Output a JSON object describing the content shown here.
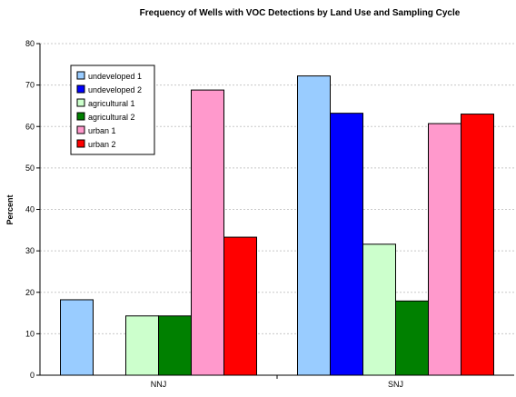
{
  "chart_data": {
    "type": "bar",
    "title": "Frequency of Wells with VOC Detections by Land Use and Sampling Cycle",
    "xlabel": "",
    "ylabel": "Percent",
    "categories": [
      "NNJ",
      "SNJ"
    ],
    "ylim": [
      0,
      80
    ],
    "yticks": [
      0,
      10,
      20,
      30,
      40,
      50,
      60,
      70,
      80
    ],
    "grid": true,
    "legend_position": "top-left",
    "series": [
      {
        "name": "undeveloped 1",
        "color": "#99ccff",
        "values": [
          18.2,
          72.2
        ]
      },
      {
        "name": "undeveloped 2",
        "color": "#0000ff",
        "values": [
          null,
          63.2
        ]
      },
      {
        "name": "agricultural 1",
        "color": "#ccffcc",
        "values": [
          14.3,
          31.6
        ]
      },
      {
        "name": "agricultural 2",
        "color": "#008000",
        "values": [
          14.3,
          17.9
        ]
      },
      {
        "name": "urban 1",
        "color": "#ff99cc",
        "values": [
          68.8,
          60.7
        ]
      },
      {
        "name": "urban 2",
        "color": "#ff0000",
        "values": [
          33.3,
          63.0
        ]
      }
    ]
  }
}
